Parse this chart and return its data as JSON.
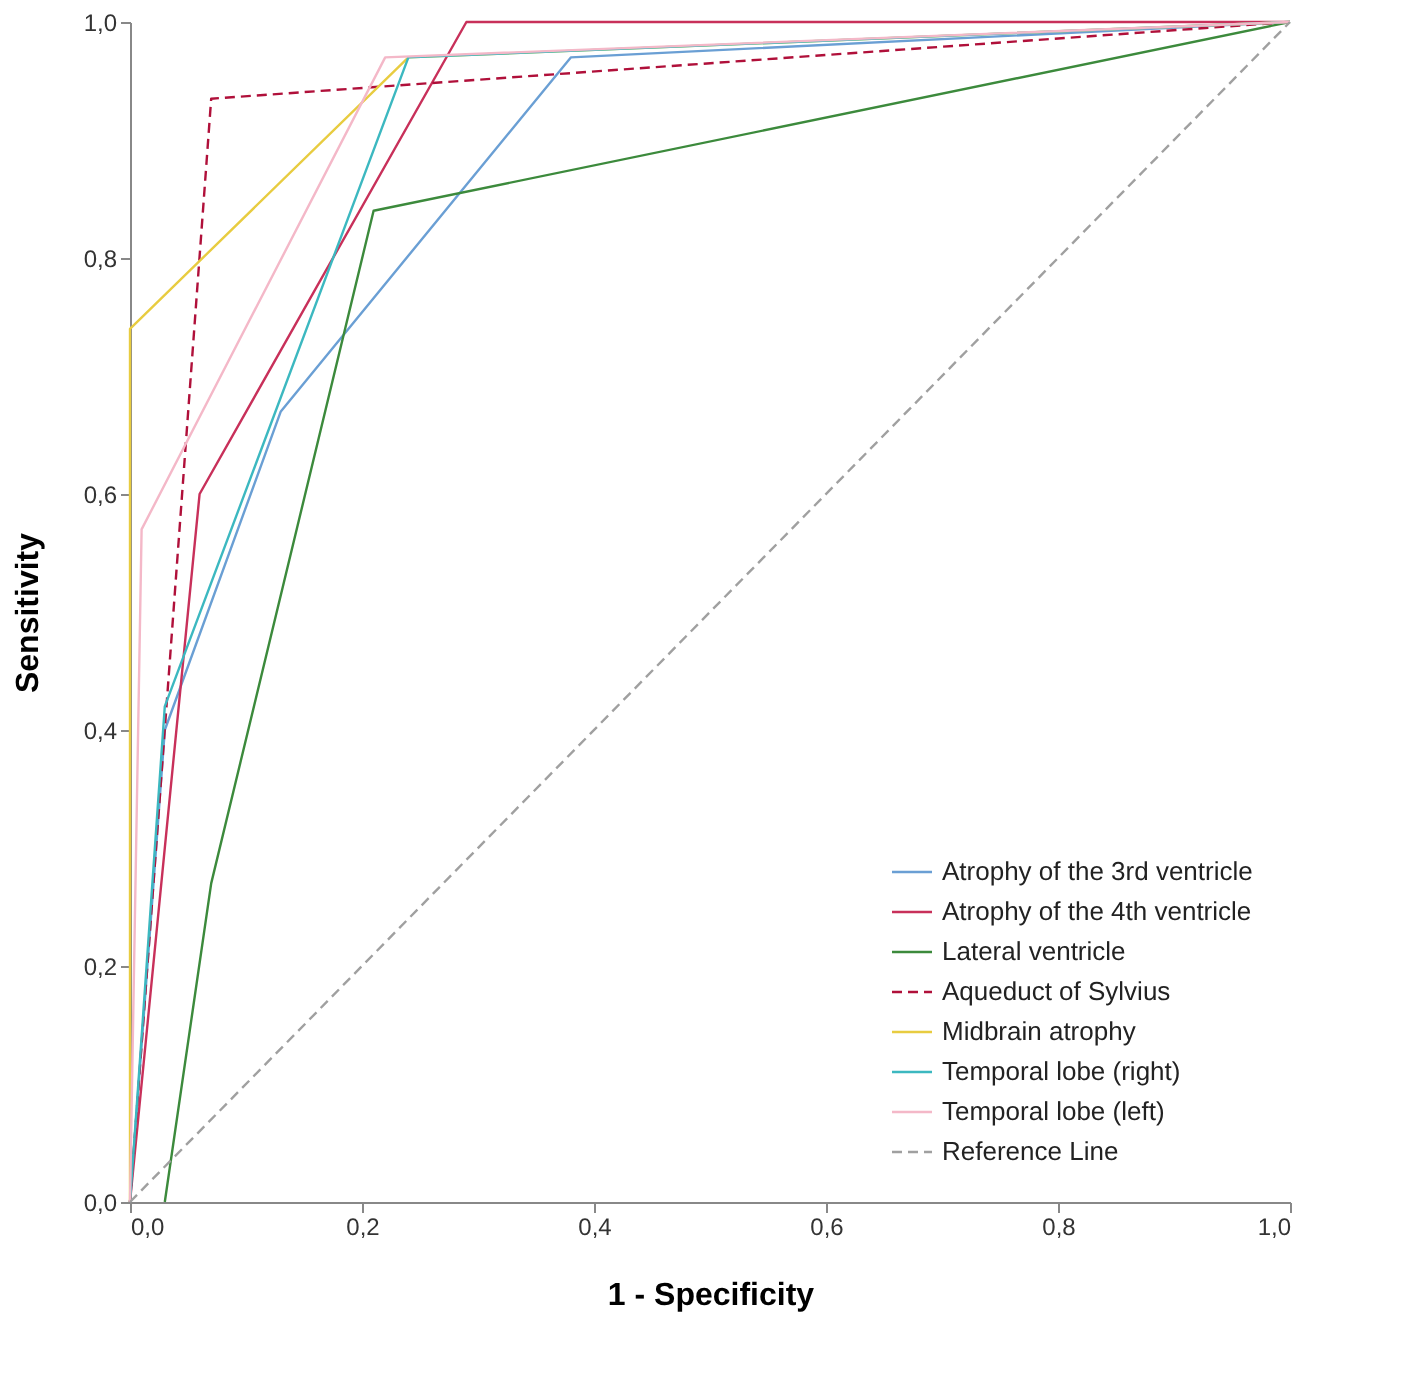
{
  "chart_data": {
    "type": "line",
    "xlabel": "1 - Specificity",
    "ylabel": "Sensitivity",
    "xlim": [
      0,
      1
    ],
    "ylim": [
      0,
      1
    ],
    "xticks": [
      {
        "value": 0,
        "label": "0,0"
      },
      {
        "value": 0.2,
        "label": "0,2"
      },
      {
        "value": 0.4,
        "label": "0,4"
      },
      {
        "value": 0.6,
        "label": "0,6"
      },
      {
        "value": 0.8,
        "label": "0,8"
      },
      {
        "value": 1,
        "label": "1,0"
      }
    ],
    "yticks": [
      {
        "value": 0,
        "label": "0,0"
      },
      {
        "value": 0.2,
        "label": "0,2"
      },
      {
        "value": 0.4,
        "label": "0,4"
      },
      {
        "value": 0.6,
        "label": "0,6"
      },
      {
        "value": 0.8,
        "label": "0,8"
      },
      {
        "value": 1,
        "label": "1,0"
      }
    ],
    "grid": false,
    "legend": "bottom right",
    "marker": "none",
    "series": [
      {
        "name": "Atrophy of the 3rd ventricle",
        "color": "#6a9fd4",
        "line_style": "solid",
        "x": [
          0,
          0.03,
          0.13,
          0.38,
          1
        ],
        "values": [
          0,
          0.4,
          0.67,
          0.97,
          1
        ]
      },
      {
        "name": "Atrophy of the 4th ventricle",
        "color": "#c8305a",
        "line_style": "solid",
        "x": [
          0,
          0.06,
          0.29,
          1
        ],
        "values": [
          0,
          0.6,
          1,
          1
        ]
      },
      {
        "name": "Lateral ventricle",
        "color": "#3c8a3c",
        "line_style": "solid",
        "x": [
          0.03,
          0.07,
          0.21,
          1
        ],
        "values": [
          0,
          0.27,
          0.84,
          1
        ]
      },
      {
        "name": "Aqueduct of Sylvius",
        "color": "#b0103a",
        "line_style": "dashed",
        "x": [
          0,
          0.07,
          1
        ],
        "values": [
          0,
          0.935,
          1
        ]
      },
      {
        "name": "Midbrain atrophy",
        "color": "#e8cc40",
        "line_style": "solid",
        "x": [
          0,
          0,
          0.24,
          1
        ],
        "values": [
          0,
          0.74,
          0.97,
          1
        ]
      },
      {
        "name": "Temporal lobe (right)",
        "color": "#3cb8c0",
        "line_style": "solid",
        "x": [
          0,
          0.03,
          0.24,
          1
        ],
        "values": [
          0,
          0.42,
          0.97,
          1
        ]
      },
      {
        "name": "Temporal lobe (left)",
        "color": "#f4b8c8",
        "line_style": "solid",
        "x": [
          0,
          0.01,
          0.22,
          1
        ],
        "values": [
          0,
          0.57,
          0.97,
          1
        ]
      },
      {
        "name": "Reference Line",
        "color": "#a0a0a0",
        "line_style": "dashed",
        "x": [
          0,
          1
        ],
        "values": [
          0,
          1
        ]
      }
    ]
  }
}
